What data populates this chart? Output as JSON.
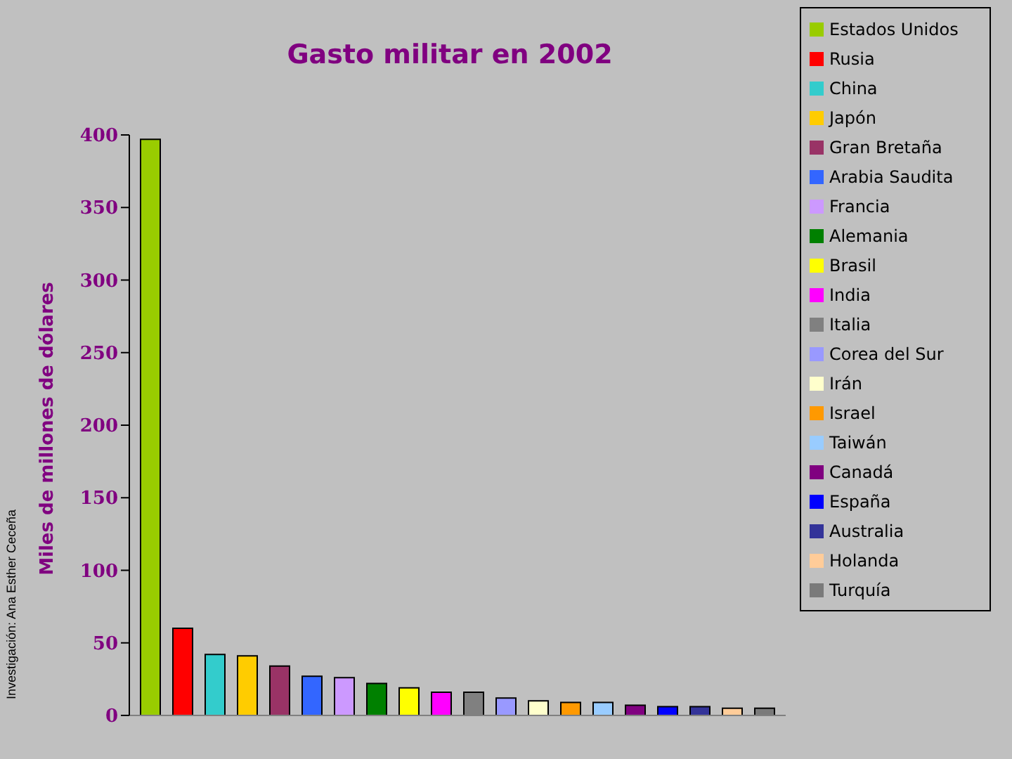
{
  "chart_data": {
    "type": "bar",
    "title": "Gasto militar en 2002",
    "ylabel": "Miles de millones de dólares",
    "annotations": [
      "Investigación: Ana Esther Ceceña"
    ],
    "categories": [
      null
    ],
    "series": [
      {
        "name": "Estados Unidos",
        "color": "#99cc00",
        "values": [
          397
        ]
      },
      {
        "name": "Rusia",
        "color": "#ff0000",
        "values": [
          60
        ]
      },
      {
        "name": "China",
        "color": "#33cccc",
        "values": [
          42
        ]
      },
      {
        "name": "Japón",
        "color": "#ffcc00",
        "values": [
          41
        ]
      },
      {
        "name": "Gran Bretaña",
        "color": "#993366",
        "values": [
          34
        ]
      },
      {
        "name": "Arabia Saudita",
        "color": "#3366ff",
        "values": [
          27
        ]
      },
      {
        "name": "Francia",
        "color": "#cc99ff",
        "values": [
          26
        ]
      },
      {
        "name": "Alemania",
        "color": "#008000",
        "values": [
          22
        ]
      },
      {
        "name": "Brasil",
        "color": "#ffff00",
        "values": [
          19
        ]
      },
      {
        "name": "India",
        "color": "#ff00ff",
        "values": [
          16
        ]
      },
      {
        "name": "Italia",
        "color": "#808080",
        "values": [
          16
        ]
      },
      {
        "name": "Corea del Sur",
        "color": "#9999ff",
        "values": [
          12
        ]
      },
      {
        "name": "Irán",
        "color": "#ffffcc",
        "values": [
          10
        ]
      },
      {
        "name": "Israel",
        "color": "#ff9900",
        "values": [
          9
        ]
      },
      {
        "name": "Taiwán",
        "color": "#99ccff",
        "values": [
          9
        ]
      },
      {
        "name": "Canadá",
        "color": "#800080",
        "values": [
          7
        ]
      },
      {
        "name": "España",
        "color": "#0000ff",
        "values": [
          6
        ]
      },
      {
        "name": "Australia",
        "color": "#333399",
        "values": [
          6
        ]
      },
      {
        "name": "Holanda",
        "color": "#ffcc99",
        "values": [
          5
        ]
      },
      {
        "name": "Turquía",
        "color": "#7a7a7a",
        "values": [
          5
        ]
      }
    ],
    "ylim": [
      0,
      400
    ],
    "yticks": [
      0,
      50,
      100,
      150,
      200,
      250,
      300,
      350,
      400
    ],
    "tick_labels": "y",
    "legend": "right",
    "grid": false
  }
}
